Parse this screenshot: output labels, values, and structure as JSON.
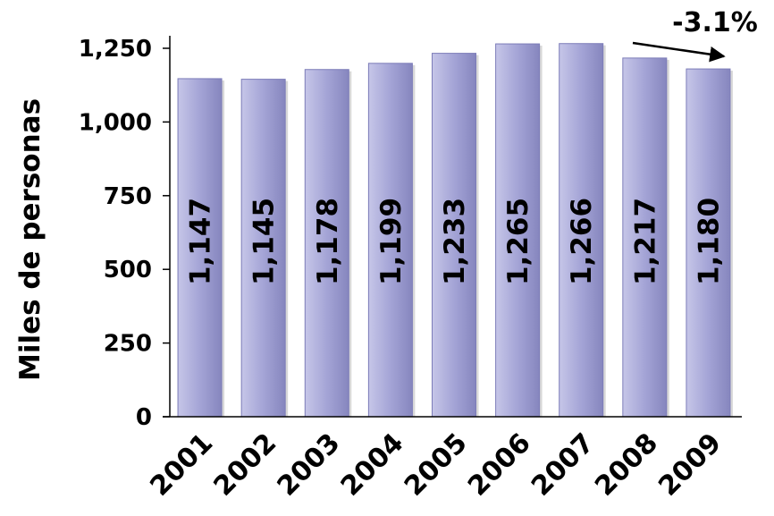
{
  "chart_data": {
    "type": "bar",
    "title": "",
    "xlabel": "",
    "ylabel": "Miles de personas",
    "categories": [
      "2001",
      "2002",
      "2003",
      "2004",
      "2005",
      "2006",
      "2007",
      "2008",
      "2009"
    ],
    "values": [
      1147,
      1145,
      1178,
      1199,
      1233,
      1265,
      1266,
      1217,
      1180
    ],
    "data_labels": [
      "1,147",
      "1,145",
      "1,178",
      "1,199",
      "1,233",
      "1,265",
      "1,266",
      "1,217",
      "1,180"
    ],
    "yticks": [
      0,
      250,
      500,
      750,
      1000,
      1250
    ],
    "ytick_labels": [
      "0",
      "250",
      "500",
      "750",
      "1,000",
      "1,250"
    ],
    "ylim": [
      0,
      1300
    ],
    "grid": false,
    "legend": "none",
    "annotation": "-3.1%",
    "bar_color": "#a2a2d4",
    "bar_edge_color": "#7c7cb8",
    "axis_color": "#000000"
  }
}
